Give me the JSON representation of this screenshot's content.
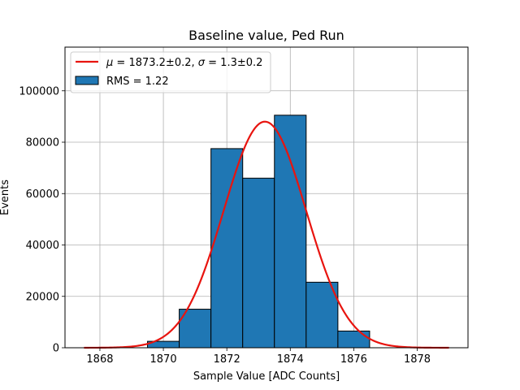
{
  "chart_data": {
    "type": "bar",
    "title": "Baseline value, Ped Run",
    "xlabel": "Sample Value [ADC Counts]",
    "ylabel": "Events",
    "xlim": [
      1866.9,
      1879.6
    ],
    "ylim": [
      0,
      117000
    ],
    "xticks": [
      1868,
      1870,
      1872,
      1874,
      1876,
      1878
    ],
    "yticks": [
      0,
      20000,
      40000,
      60000,
      80000,
      100000
    ],
    "grid": true,
    "legend_position": "top-left",
    "colors": {
      "bars": "#1f77b4",
      "bar_edge": "#000000",
      "fit": "#e8140f"
    },
    "histogram": {
      "name": "RMS = 1.22",
      "bin_edges": [
        1869.5,
        1870.5,
        1871.5,
        1872.5,
        1873.5,
        1874.5,
        1875.5,
        1876.5
      ],
      "values": [
        2500,
        15000,
        77500,
        66000,
        90500,
        25500,
        6500
      ]
    },
    "fit": {
      "mean": 1873.2,
      "mean_err": 0.2,
      "sigma": 1.3,
      "sigma_err": 0.2,
      "amplitude": 88000,
      "x_range": [
        1867.5,
        1879.0
      ]
    },
    "legend_fit_label": {
      "mu_symbol": "μ",
      "mu_text": " = 1873.2±0.2, ",
      "sigma_symbol": "σ",
      "sigma_text": " = 1.3±0.2"
    }
  }
}
